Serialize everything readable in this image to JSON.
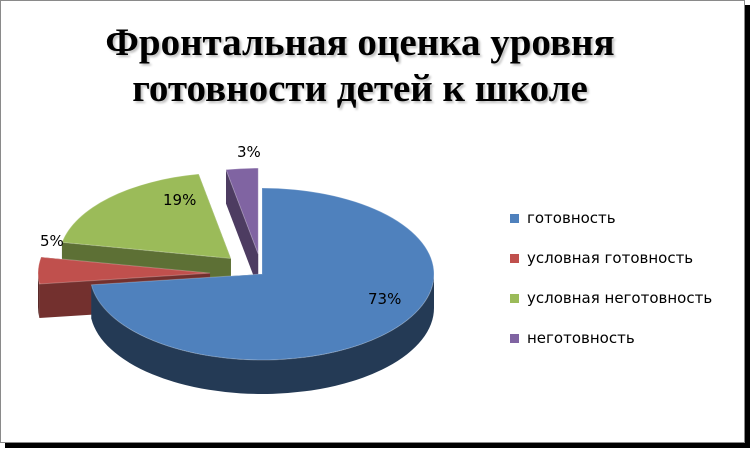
{
  "chart_data": {
    "type": "pie",
    "title": "Фронтальная оценка уровня готовности детей к школе",
    "title_lines": [
      "Фронтальная оценка уровня",
      "готовности детей к школе"
    ],
    "style": "3d-exploded",
    "legend_position": "right",
    "slices": [
      {
        "label": "готовность",
        "value": 73,
        "value_label": "73%",
        "color": "#4F81BD"
      },
      {
        "label": "условная готовность",
        "value": 5,
        "value_label": "5%",
        "color": "#C0504D"
      },
      {
        "label": "условная неготовность",
        "value": 19,
        "value_label": "19%",
        "color": "#9BBB59"
      },
      {
        "label": "неготовность",
        "value": 3,
        "value_label": "3%",
        "color": "#8064A2"
      }
    ]
  }
}
